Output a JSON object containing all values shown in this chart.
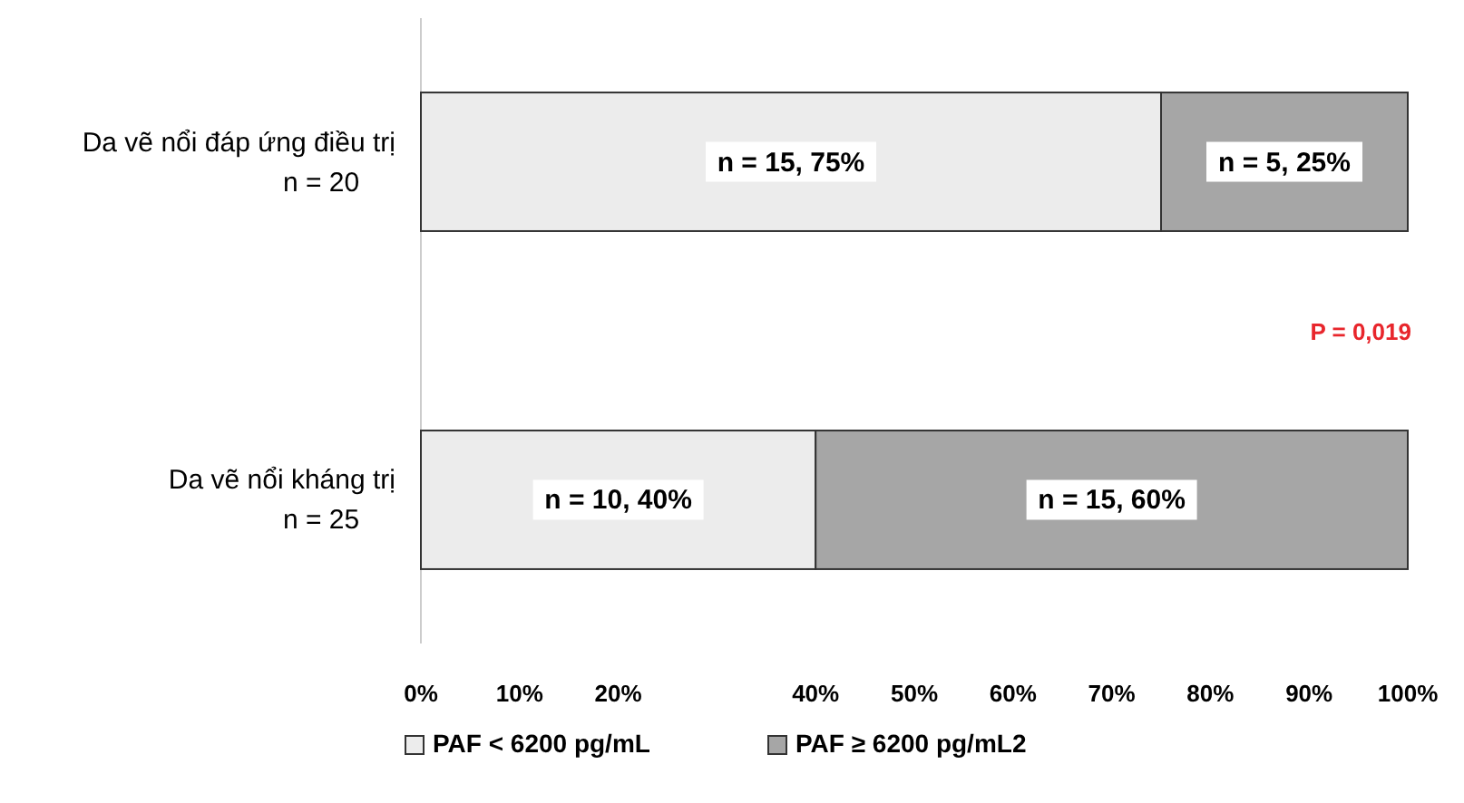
{
  "chart_data": {
    "type": "bar",
    "orientation": "horizontal",
    "stacked": true,
    "categories": [
      "Da vẽ nổi đáp ứng điều trị\nn = 20",
      "Da vẽ nổi kháng trị\nn = 25"
    ],
    "series": [
      {
        "name": "PAF < 6200 pg/mL",
        "color": "#ececec",
        "values": [
          75,
          40
        ],
        "value_labels": [
          "n = 15, 75%",
          "n = 10, 40%"
        ]
      },
      {
        "name": "PAF ≥ 6200 pg/mL2",
        "color": "#a6a6a6",
        "values": [
          25,
          60
        ],
        "value_labels": [
          "n = 5, 25%",
          "n = 15, 60%"
        ]
      }
    ],
    "xlim": [
      0,
      100
    ],
    "xticks": [
      {
        "value": 0,
        "label": "0%"
      },
      {
        "value": 10,
        "label": "10%"
      },
      {
        "value": 20,
        "label": "20%"
      },
      {
        "value": 40,
        "label": "40%"
      },
      {
        "value": 50,
        "label": "50%"
      },
      {
        "value": 60,
        "label": "60%"
      },
      {
        "value": 70,
        "label": "70%"
      },
      {
        "value": 80,
        "label": "80%"
      },
      {
        "value": 90,
        "label": "90%"
      },
      {
        "value": 100,
        "label": "100%"
      }
    ],
    "annotations": [
      "P = 0,019"
    ],
    "legend": "bottom",
    "grid": false
  }
}
